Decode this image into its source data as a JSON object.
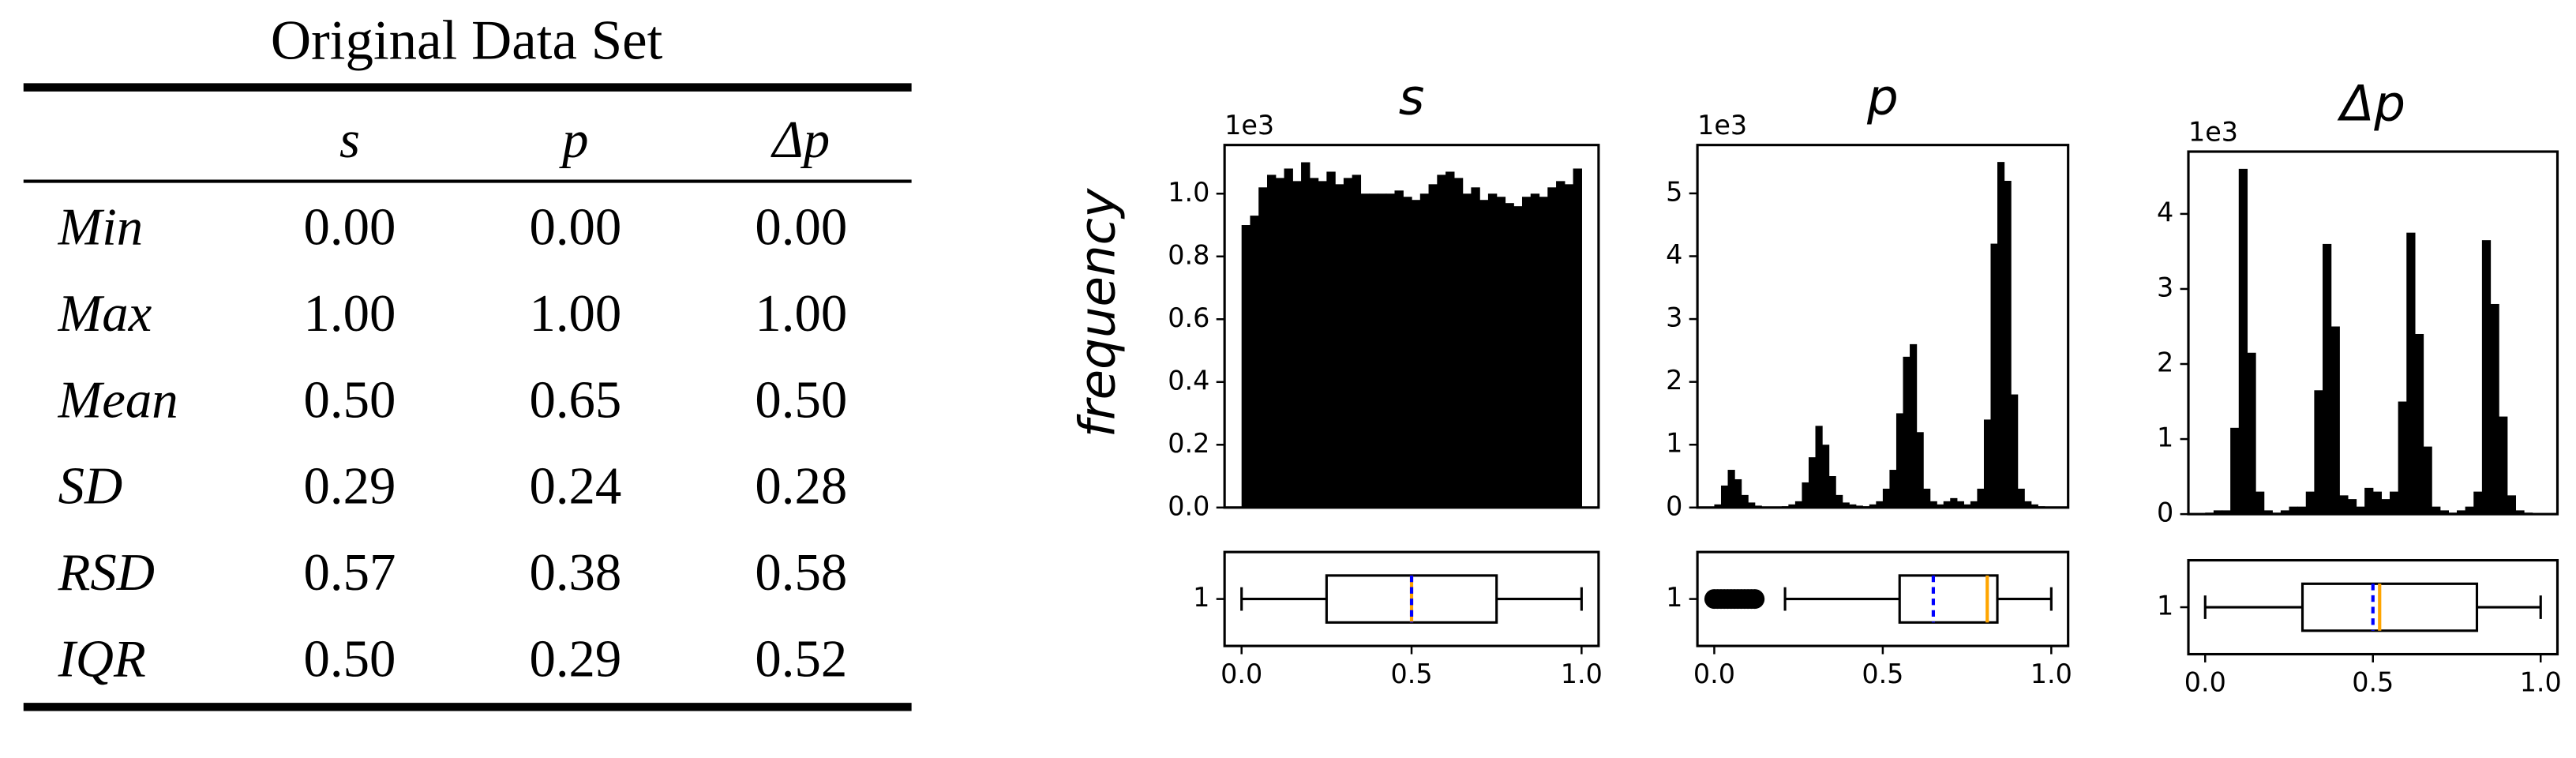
{
  "table": {
    "title": "Original Data Set",
    "columns": [
      "s",
      "p",
      "Δp"
    ],
    "rows": [
      [
        "Min",
        "0.00",
        "0.00",
        "0.00"
      ],
      [
        "Max",
        "1.00",
        "1.00",
        "1.00"
      ],
      [
        "Mean",
        "0.50",
        "0.65",
        "0.50"
      ],
      [
        "SD",
        "0.29",
        "0.24",
        "0.28"
      ],
      [
        "RSD",
        "0.57",
        "0.38",
        "0.58"
      ],
      [
        "IQR",
        "0.50",
        "0.29",
        "0.52"
      ]
    ]
  },
  "ylabel": "frequency",
  "chart_data": [
    {
      "type": "histogram",
      "title": "s",
      "offset_label": "1e3",
      "color": "#000000",
      "bins": [
        0,
        0.025,
        0.05,
        0.075,
        0.1,
        0.125,
        0.15,
        0.175,
        0.2,
        0.225,
        0.25,
        0.275,
        0.3,
        0.325,
        0.35,
        0.375,
        0.4,
        0.425,
        0.45,
        0.475,
        0.5,
        0.525,
        0.55,
        0.575,
        0.6,
        0.625,
        0.65,
        0.675,
        0.7,
        0.725,
        0.75,
        0.775,
        0.8,
        0.825,
        0.85,
        0.875,
        0.9,
        0.925,
        0.95,
        0.975,
        1
      ],
      "counts": [
        0.9,
        0.93,
        1.02,
        1.06,
        1.05,
        1.08,
        1.04,
        1.1,
        1.05,
        1.04,
        1.07,
        1.03,
        1.05,
        1.06,
        1.0,
        1.0,
        1.0,
        1.0,
        1.01,
        0.99,
        0.98,
        1.0,
        1.03,
        1.06,
        1.07,
        1.05,
        1.0,
        1.02,
        0.98,
        1.0,
        0.99,
        0.97,
        0.96,
        0.99,
        1.0,
        0.99,
        1.02,
        1.04,
        1.03,
        1.08
      ],
      "xlim": [
        -0.05,
        1.05
      ],
      "ylim": [
        0,
        1.155
      ],
      "yticks": [
        {
          "value": 0,
          "label": "0.0"
        },
        {
          "value": 0.2,
          "label": "0.2"
        },
        {
          "value": 0.4,
          "label": "0.4"
        },
        {
          "value": 0.6,
          "label": "0.6"
        },
        {
          "value": 0.8,
          "label": "0.8"
        },
        {
          "value": 1,
          "label": "1.0"
        }
      ]
    },
    {
      "type": "box",
      "color": "#000000",
      "median_color": "#ffa500",
      "mean_color": "#0000ff",
      "whislo": 0,
      "q1": 0.25,
      "median": 0.5,
      "mean": 0.5,
      "q3": 0.75,
      "whishi": 1,
      "fliers": [],
      "xlim": [
        -0.05,
        1.05
      ],
      "ylim": [
        0.5,
        1.5
      ],
      "yticks": [
        1
      ],
      "xticks": [
        {
          "value": 0,
          "label": "0.0"
        },
        {
          "value": 0.5,
          "label": "0.5"
        },
        {
          "value": 1,
          "label": "1.0"
        }
      ]
    },
    {
      "type": "histogram",
      "title": "p",
      "offset_label": "1e3",
      "color": "#000000",
      "bins": [
        0,
        0.02,
        0.04,
        0.06,
        0.08,
        0.1,
        0.12,
        0.14,
        0.16,
        0.18,
        0.2,
        0.22,
        0.24,
        0.26,
        0.28,
        0.3,
        0.32,
        0.34,
        0.36,
        0.38,
        0.4,
        0.42,
        0.44,
        0.46,
        0.48,
        0.5,
        0.52,
        0.54,
        0.56,
        0.58,
        0.6,
        0.62,
        0.64,
        0.66,
        0.68,
        0.7,
        0.72,
        0.74,
        0.76,
        0.78,
        0.8,
        0.82,
        0.84,
        0.86,
        0.88,
        0.9,
        0.92,
        0.94,
        0.96,
        0.98,
        1
      ],
      "counts": [
        0.05,
        0.35,
        0.6,
        0.45,
        0.2,
        0.08,
        0.03,
        0.01,
        0.01,
        0.01,
        0.02,
        0.05,
        0.1,
        0.4,
        0.8,
        1.3,
        1.0,
        0.5,
        0.2,
        0.08,
        0.05,
        0.03,
        0.02,
        0.05,
        0.1,
        0.3,
        0.6,
        1.5,
        2.4,
        2.6,
        1.2,
        0.3,
        0.1,
        0.05,
        0.1,
        0.15,
        0.1,
        0.05,
        0.1,
        0.3,
        1.4,
        4.2,
        5.5,
        5.2,
        1.8,
        0.3,
        0.1,
        0.05,
        0.02,
        0.01
      ],
      "xlim": [
        -0.05,
        1.05
      ],
      "ylim": [
        0,
        5.77
      ],
      "yticks": [
        0,
        1,
        2,
        3,
        4,
        5
      ]
    },
    {
      "type": "box",
      "color": "#000000",
      "median_color": "#ffa500",
      "mean_color": "#0000ff",
      "whislo": 0.21,
      "q1": 0.55,
      "median": 0.81,
      "mean": 0.65,
      "q3": 0.84,
      "whishi": 1,
      "fliers": [
        0,
        0.01,
        0.02,
        0.03,
        0.04,
        0.05,
        0.06,
        0.07,
        0.08,
        0.09,
        0.1,
        0.11,
        0.12
      ],
      "xlim": [
        -0.05,
        1.05
      ],
      "ylim": [
        0.5,
        1.5
      ],
      "yticks": [
        1
      ],
      "xticks": [
        {
          "value": 0,
          "label": "0.0"
        },
        {
          "value": 0.5,
          "label": "0.5"
        },
        {
          "value": 1,
          "label": "1.0"
        }
      ]
    },
    {
      "type": "histogram",
      "title": "Δp",
      "offset_label": "1e3",
      "color": "#000000",
      "bins": [
        0,
        0.025,
        0.05,
        0.075,
        0.1,
        0.125,
        0.15,
        0.175,
        0.2,
        0.225,
        0.25,
        0.275,
        0.3,
        0.325,
        0.35,
        0.375,
        0.4,
        0.425,
        0.45,
        0.475,
        0.5,
        0.525,
        0.55,
        0.575,
        0.6,
        0.625,
        0.65,
        0.675,
        0.7,
        0.725,
        0.75,
        0.775,
        0.8,
        0.825,
        0.85,
        0.875,
        0.9,
        0.925,
        0.95,
        0.975,
        1
      ],
      "counts": [
        0.02,
        0.05,
        0.05,
        1.15,
        4.6,
        2.15,
        0.3,
        0.05,
        0.02,
        0.05,
        0.1,
        0.1,
        0.3,
        1.65,
        3.6,
        2.5,
        0.25,
        0.2,
        0.1,
        0.35,
        0.3,
        0.2,
        0.3,
        1.5,
        3.75,
        2.4,
        0.9,
        0.1,
        0.05,
        0.02,
        0.05,
        0.1,
        0.3,
        3.65,
        2.8,
        1.3,
        0.25,
        0.05,
        0.02,
        0.01
      ],
      "xlim": [
        -0.05,
        1.05
      ],
      "ylim": [
        0,
        4.83
      ],
      "yticks": [
        0,
        1,
        2,
        3,
        4
      ]
    },
    {
      "type": "box",
      "color": "#000000",
      "median_color": "#ffa500",
      "mean_color": "#0000ff",
      "whislo": 0,
      "q1": 0.29,
      "median": 0.52,
      "mean": 0.5,
      "q3": 0.81,
      "whishi": 1,
      "fliers": [],
      "xlim": [
        -0.05,
        1.05
      ],
      "ylim": [
        0.5,
        1.5
      ],
      "yticks": [
        1
      ],
      "xticks": [
        {
          "value": 0,
          "label": "0.0"
        },
        {
          "value": 0.5,
          "label": "0.5"
        },
        {
          "value": 1,
          "label": "1.0"
        }
      ]
    }
  ]
}
